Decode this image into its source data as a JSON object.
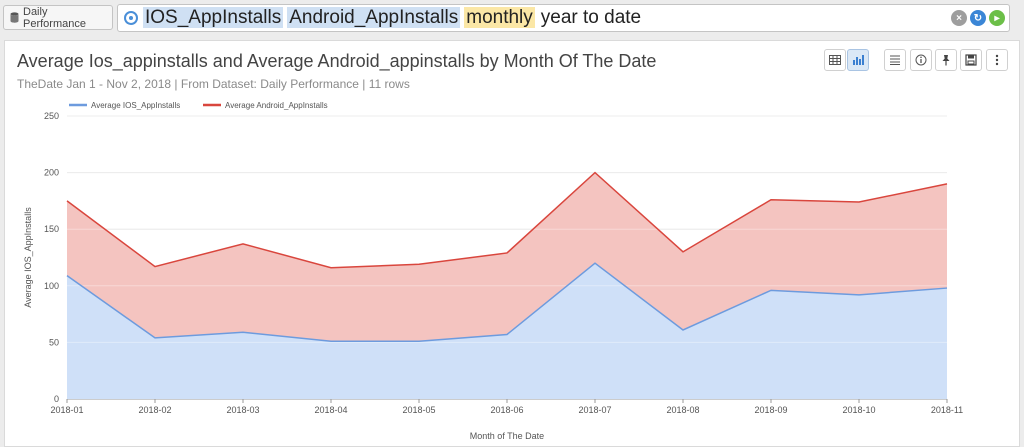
{
  "datasource": {
    "label": "Daily Performance",
    "icon": "database-icon"
  },
  "search": {
    "icon": "search-refresh-icon",
    "tokens": [
      {
        "text": "IOS_AppInstalls",
        "style": "blue"
      },
      {
        "text": "Android_AppInstalls",
        "style": "blue"
      },
      {
        "text": "monthly",
        "style": "yellow"
      },
      {
        "text": "year to date",
        "style": "plain"
      }
    ],
    "buttons": [
      "clear-icon",
      "refresh-icon",
      "go-icon"
    ]
  },
  "card": {
    "title": "Average Ios_appinstalls and Average Android_appinstalls by Month Of The Date",
    "subtitle": "TheDate Jan 1 - Nov 2, 2018 | From Dataset: Daily Performance | 11 rows",
    "tools": [
      "table-view-icon",
      "chart-view-icon",
      "list-icon",
      "info-icon",
      "pin-icon",
      "save-icon",
      "more-icon"
    ]
  },
  "colors": {
    "ios_fill": "#cfe0f8",
    "ios_line": "#6d9bde",
    "android_fill": "#f4c4c0",
    "android_line": "#d9463d"
  },
  "chart_data": {
    "type": "area",
    "stacked": true,
    "categories": [
      "2018-01",
      "2018-02",
      "2018-03",
      "2018-04",
      "2018-05",
      "2018-06",
      "2018-07",
      "2018-08",
      "2018-09",
      "2018-10",
      "2018-11"
    ],
    "series": [
      {
        "name": "Average IOS_AppInstalls",
        "values": [
          109,
          54,
          59,
          51,
          51,
          57,
          120,
          61,
          96,
          92,
          98
        ]
      },
      {
        "name": "Average Android_AppInstalls",
        "values": [
          66,
          63,
          78,
          65,
          68,
          72,
          80,
          69,
          80,
          82,
          92
        ]
      }
    ],
    "ylim": [
      0,
      250
    ],
    "yticks": [
      0,
      50,
      100,
      150,
      200,
      250
    ],
    "xlabel": "Month of The Date",
    "ylabel": "Average IOS_AppInstalls",
    "legend": "top-left",
    "grid": true
  }
}
